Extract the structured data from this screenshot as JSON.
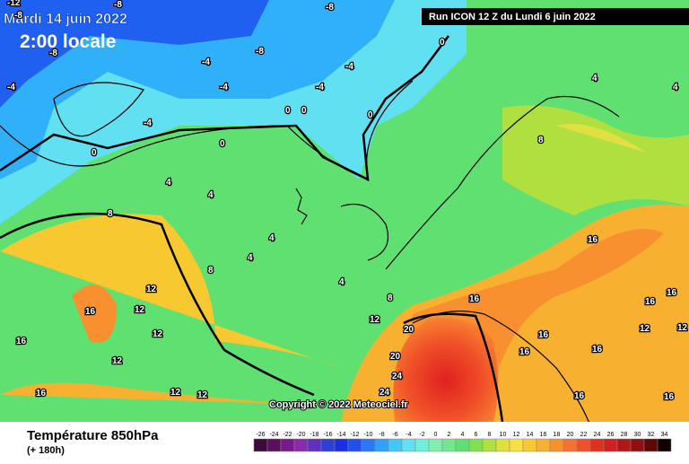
{
  "header": {
    "date": "Mardi 14 juin 2022",
    "time": "2:00 locale",
    "run": "Run ICON 12 Z du Lundi 6 juin 2022"
  },
  "copyright": "Copyright © 2022 Meteociel.fr",
  "footer": {
    "title": "Température 850hPa",
    "lead": "(+ 180h)"
  },
  "contour_labels": [
    -12,
    -8,
    -8,
    -4,
    -8,
    -8,
    -4,
    -4,
    -4,
    -4,
    -8,
    -4,
    0,
    0,
    0,
    0,
    0,
    0,
    4,
    4,
    4,
    4,
    4,
    8,
    8,
    4,
    4,
    8,
    16,
    12,
    12,
    16,
    12,
    16,
    12,
    12,
    16,
    16,
    12,
    8,
    12,
    20,
    20,
    24,
    24,
    16,
    16,
    16,
    16,
    12,
    12,
    16,
    16,
    16
  ],
  "scale": {
    "values": [
      -26,
      -24,
      -22,
      -20,
      -18,
      -16,
      -14,
      -12,
      -10,
      -8,
      -6,
      -4,
      -2,
      0,
      2,
      4,
      6,
      8,
      10,
      12,
      14,
      16,
      18,
      20,
      22,
      24,
      26,
      28,
      30,
      32,
      34
    ],
    "colors": [
      "#3a0a3a",
      "#5a1060",
      "#7a1a8a",
      "#8a2ab0",
      "#6030c0",
      "#3040d0",
      "#1a30e0",
      "#2050f0",
      "#2878f8",
      "#30a0f8",
      "#40c8f8",
      "#60e0f0",
      "#70f0d8",
      "#80f0b0",
      "#70e890",
      "#60e070",
      "#80e050",
      "#b0e040",
      "#e0e040",
      "#f8e040",
      "#f8c830",
      "#f8b030",
      "#f89030",
      "#f87030",
      "#f05028",
      "#e03020",
      "#d02020",
      "#b01818",
      "#901010",
      "#600808",
      "#100000"
    ]
  }
}
